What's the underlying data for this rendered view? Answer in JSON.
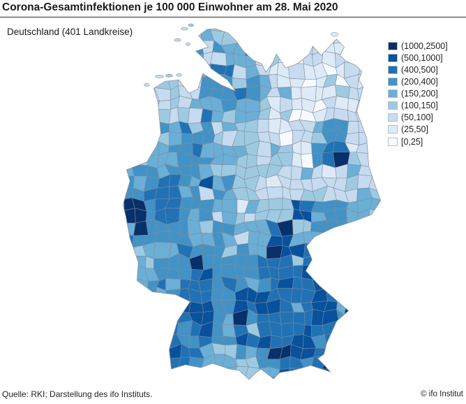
{
  "header": {
    "title": "Corona-Gesamtinfektionen je 100 000 Einwohner am 28. Mai 2020",
    "subtitle": "Deutschland (401 Landkreise)"
  },
  "footer": {
    "source": "Quelle: RKI; Darstellung des ifo Instituts.",
    "copyright": "© ifo Institut"
  },
  "chart_data": {
    "type": "choropleth",
    "title": "Corona-Gesamtinfektionen je 100 000 Einwohner am 28. Mai 2020",
    "region": "Deutschland",
    "regions_count_label": "401 Landkreise",
    "date_shown": "28. Mai 2020",
    "metric": "Corona-Gesamtinfektionen je 100 000 Einwohner",
    "legend": {
      "position": "top-right",
      "classes": [
        {
          "label": "(1000,2500]",
          "color": "#08306b"
        },
        {
          "label": "(500,1000]",
          "color": "#08519c"
        },
        {
          "label": "(400,500]",
          "color": "#2171b5"
        },
        {
          "label": "(200,400]",
          "color": "#4292c6"
        },
        {
          "label": "(150,200]",
          "color": "#6baed6"
        },
        {
          "label": "(100,150]",
          "color": "#9ecae1"
        },
        {
          "label": "(50,100]",
          "color": "#c6dbef"
        },
        {
          "label": "(25,50]",
          "color": "#deebf7"
        },
        {
          "label": "[0,25]",
          "color": "#f7fbff"
        }
      ]
    },
    "palette_light_to_dark": [
      "#f7fbff",
      "#deebf7",
      "#c6dbef",
      "#9ecae1",
      "#6baed6",
      "#9ecae1",
      "#6baed6",
      "#4292c6",
      "#08306b"
    ],
    "intensity_grid": {
      "description": "Approximate spatial pattern of infection classes across Germany; digits are indices into palette_light_to_dark (0 = [0,25] lightest, 8 = (1000,2500] darkest). North-east (Mecklenburg/Brandenburg) lightest, south (Bayern, Baden-Wuerttemberg) darkest, hotspot Heinsberg in the west.",
      "cols": 14,
      "rows": 18,
      "rows_data": [
        "33344333222211",
        "33443442112111",
        "22345532121122",
        "22324554211122",
        "23334443111222",
        "34455332124522",
        "34454432315632",
        "45554333222143",
        "55654432223233",
        "85655433374554",
        "55544544745545",
        "44455455766666",
        "44555556667866",
        "45566556667776",
        "45677566667786",
        "56656566676667",
        "66765345677787",
        "56665434567777"
      ]
    },
    "border_color": "#7d8c9b",
    "outline_color": "#8a97a3"
  }
}
